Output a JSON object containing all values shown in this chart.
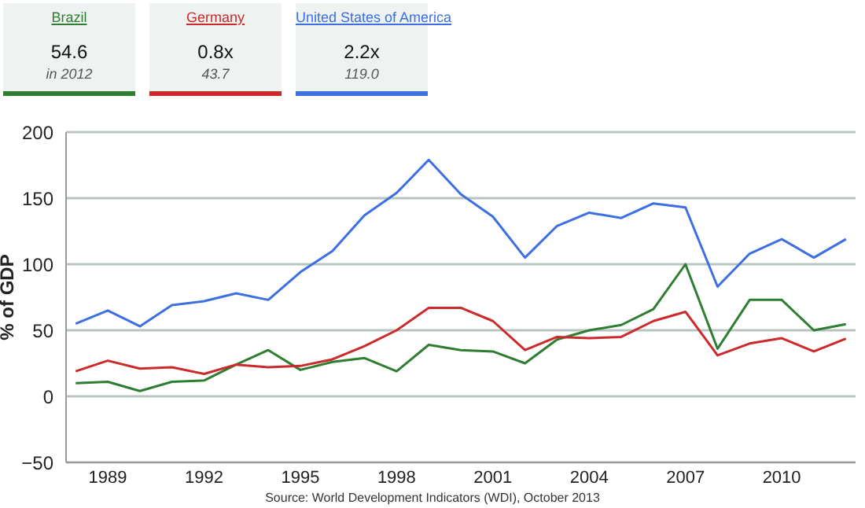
{
  "chart_data": {
    "type": "line",
    "ylabel": "% of GDP",
    "x": [
      1988,
      1989,
      1990,
      1991,
      1992,
      1993,
      1994,
      1995,
      1996,
      1997,
      1998,
      1999,
      2000,
      2001,
      2002,
      2003,
      2004,
      2005,
      2006,
      2007,
      2008,
      2009,
      2010,
      2011,
      2012
    ],
    "series": [
      {
        "name": "Brazil",
        "color": "#2e7d32",
        "values": [
          10,
          11,
          4,
          11,
          12,
          24,
          35,
          20,
          26,
          29,
          19,
          39,
          35,
          34,
          25,
          43,
          50,
          54,
          66,
          100,
          36,
          73,
          73,
          50,
          54.6
        ]
      },
      {
        "name": "Germany",
        "color": "#cc2a2a",
        "values": [
          19,
          27,
          21,
          22,
          17,
          24,
          22,
          23,
          28,
          38,
          50,
          67,
          67,
          57,
          35,
          45,
          44,
          45,
          57,
          64,
          31,
          40,
          44,
          34,
          43.7
        ]
      },
      {
        "name": "United States of America",
        "color": "#3d6fe0",
        "values": [
          55,
          65,
          53,
          69,
          72,
          78,
          73,
          94,
          110,
          137,
          154,
          179,
          153,
          136,
          105,
          129,
          139,
          135,
          146,
          143,
          83,
          108,
          119,
          105,
          119.0
        ]
      }
    ],
    "annotations": [
      "54.6",
      "in 2012",
      "0.8x",
      "43.7",
      "2.2x",
      "119.0",
      "Source: World Development Indicators (WDI), October 2013"
    ],
    "xlim": [
      1987.7,
      2012.3
    ],
    "xticks": [
      1989,
      1992,
      1995,
      1998,
      2001,
      2004,
      2007,
      2010
    ],
    "ylim": [
      -50,
      200
    ],
    "yticks": [
      -50,
      0,
      50,
      100,
      150,
      200
    ],
    "grid": "y",
    "legend": "top left",
    "line_style": "solid",
    "marker": "none"
  }
}
